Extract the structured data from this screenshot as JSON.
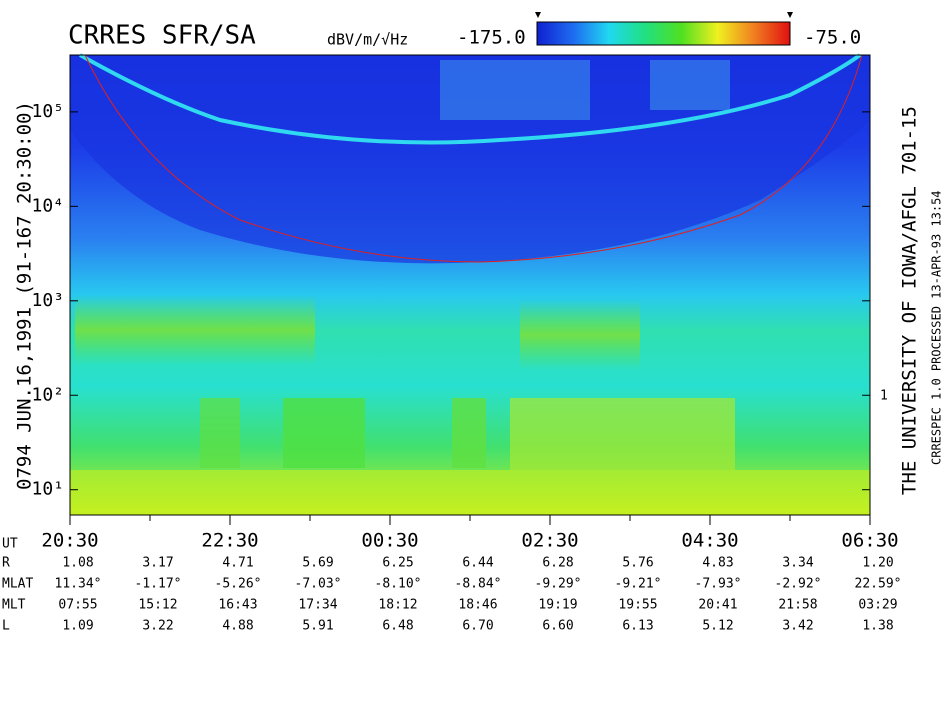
{
  "chart_data": {
    "type": "spectrogram",
    "title": "CRRES SFR/SA",
    "colorbar": {
      "units": "dBV/m/√Hz",
      "min_label": "-175.0",
      "max_label": "-75.0",
      "colors": [
        "#1020d0",
        "#1e6cf0",
        "#20d8f0",
        "#20e080",
        "#50e020",
        "#f0f020",
        "#f08020",
        "#e01010"
      ]
    },
    "left_label": "0794    JUN.16,1991   (91-167 20:30:00)",
    "right_label": "THE UNIVERSITY OF IOWA/AFGL 701-15",
    "right_note": "CRRESPEC 1.0   PROCESSED 13-APR-93   13:54",
    "right_axis_label": "1",
    "log_y": true,
    "ylim": [
      5.4,
      400000
    ],
    "yticks": [
      {
        "value": 10,
        "label": "10¹"
      },
      {
        "value": 100,
        "label": "10²"
      },
      {
        "value": 1000,
        "label": "10³"
      },
      {
        "value": 10000,
        "label": "10⁴"
      },
      {
        "value": 100000,
        "label": "10⁵"
      }
    ],
    "xlim": [
      0,
      10
    ],
    "xticks": [
      {
        "value": 0,
        "label": "20:30"
      },
      {
        "value": 2,
        "label": "22:30"
      },
      {
        "value": 4,
        "label": "00:30"
      },
      {
        "value": 6,
        "label": "02:30"
      },
      {
        "value": 8,
        "label": "04:30"
      },
      {
        "value": 10,
        "label": "06:30"
      }
    ],
    "xminorticks": [
      1,
      3,
      5,
      7,
      9
    ],
    "x_row_label": "UT",
    "ephemeris": [
      {
        "label": "R",
        "values": [
          "1.08",
          "3.17",
          "4.71",
          "5.69",
          "6.25",
          "6.44",
          "6.28",
          "5.76",
          "4.83",
          "3.34",
          "1.20"
        ]
      },
      {
        "label": "MLAT",
        "values": [
          "11.34°",
          "-1.17°",
          "-5.26°",
          "-7.03°",
          "-8.10°",
          "-8.84°",
          "-9.29°",
          "-9.21°",
          "-7.93°",
          "-2.92°",
          "22.59°"
        ]
      },
      {
        "label": "MLT",
        "values": [
          "07:55",
          "15:12",
          "16:43",
          "17:34",
          "18:12",
          "18:46",
          "19:19",
          "19:55",
          "20:41",
          "21:58",
          "03:29"
        ]
      },
      {
        "label": "L",
        "values": [
          "1.09",
          "3.22",
          "4.88",
          "5.91",
          "6.48",
          "6.70",
          "6.60",
          "6.13",
          "5.12",
          "3.42",
          "1.38"
        ]
      }
    ]
  }
}
